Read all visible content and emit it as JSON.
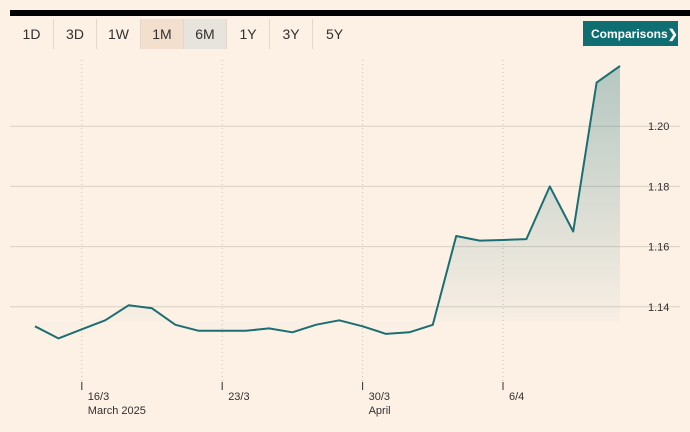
{
  "range_selector": {
    "buttons": [
      "1D",
      "3D",
      "1W",
      "1M",
      "6M",
      "1Y",
      "3Y",
      "5Y"
    ],
    "selected": "1M"
  },
  "comparisons": {
    "label": "Comparisons",
    "arrow": "❯"
  },
  "colors": {
    "line": "#1b6e72",
    "grid": "#d9cfc4",
    "background": "#fdf1e6",
    "button": "#0f6e72"
  },
  "chart_data": {
    "type": "area",
    "title": "",
    "xlabel": "",
    "ylabel": "",
    "x": [
      "2025-03-13",
      "2025-03-14",
      "2025-03-17",
      "2025-03-18",
      "2025-03-19",
      "2025-03-20",
      "2025-03-21",
      "2025-03-24",
      "2025-03-25",
      "2025-03-26",
      "2025-03-27",
      "2025-03-28",
      "2025-03-31",
      "2025-04-01",
      "2025-04-02",
      "2025-04-03",
      "2025-04-04",
      "2025-04-07",
      "2025-04-08",
      "2025-04-09",
      "2025-04-10",
      "2025-04-11",
      "2025-04-14",
      "2025-04-15",
      "2025-04-16",
      "2025-04-17"
    ],
    "values": [
      1.1335,
      1.1295,
      1.1325,
      1.1355,
      1.1405,
      1.1395,
      1.134,
      1.132,
      1.132,
      1.132,
      1.1328,
      1.1315,
      1.134,
      1.1355,
      1.1335,
      1.131,
      1.1315,
      1.134,
      1.1635,
      1.162,
      1.1622,
      1.1625,
      1.18,
      1.165,
      1.2145,
      1.22
    ],
    "ylim": [
      1.115,
      1.222
    ],
    "y_ticks": [
      1.14,
      1.16,
      1.18,
      1.2
    ],
    "y_tick_labels": [
      "1.14",
      "1.16",
      "1.18",
      "1.20"
    ],
    "x_ticks": [
      {
        "index": 2,
        "label": "16/3",
        "sublabel": "March 2025"
      },
      {
        "index": 8,
        "label": "23/3",
        "sublabel": ""
      },
      {
        "index": 14,
        "label": "30/3",
        "sublabel": "April"
      },
      {
        "index": 20,
        "label": "6/4",
        "sublabel": ""
      }
    ],
    "grid": true,
    "y_axis_position": "right"
  }
}
